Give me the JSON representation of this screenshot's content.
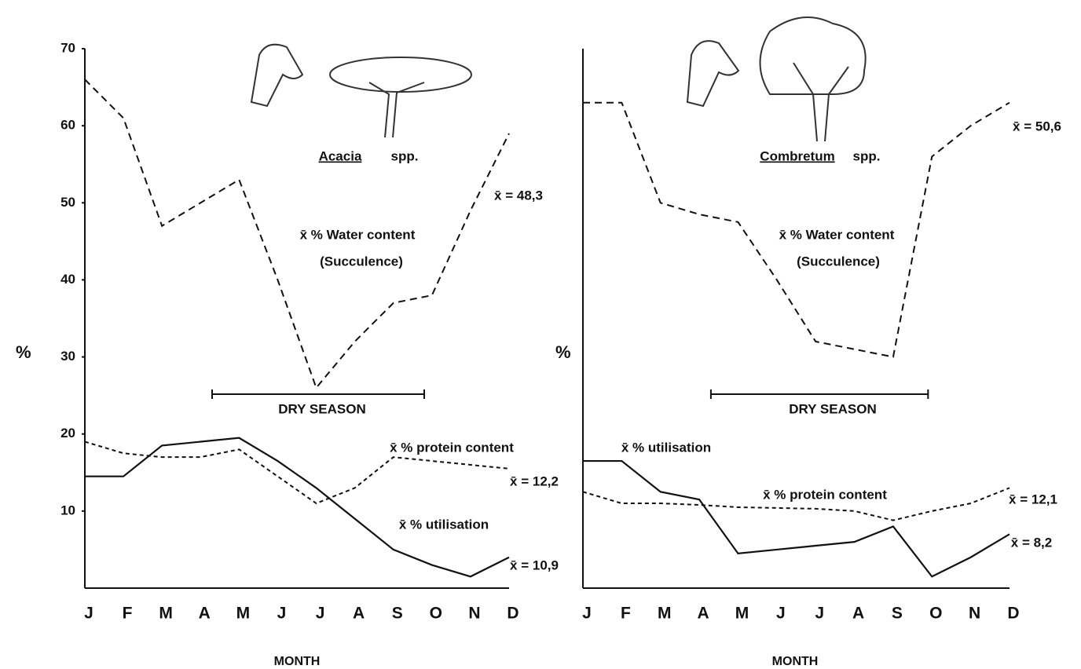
{
  "chart_data": [
    {
      "type": "line",
      "y_label": "%",
      "x_label": "MONTH",
      "categories": [
        "J",
        "F",
        "M",
        "A",
        "M",
        "J",
        "J",
        "A",
        "S",
        "O",
        "N",
        "D"
      ],
      "ylim": [
        0,
        70
      ],
      "yticks": [
        10,
        20,
        30,
        40,
        50,
        60,
        70
      ],
      "series": [
        {
          "name": "x̄ % Water content",
          "color": "#111111",
          "style": "dashed",
          "values": [
            66,
            61,
            47,
            50,
            53,
            40,
            26,
            32,
            37,
            38,
            49,
            59
          ]
        },
        {
          "name": "x̄ % protein content",
          "color": "#111111",
          "style": "dotted",
          "values": [
            19,
            17.5,
            17,
            17,
            18,
            14.5,
            11,
            13,
            17,
            16.5,
            16,
            15.5
          ]
        },
        {
          "name": "x̄ % utilisation",
          "color": "#111111",
          "style": "solid",
          "values": [
            14.5,
            14.5,
            18.5,
            19,
            19.5,
            16.5,
            13,
            9,
            5,
            3,
            1.5,
            4
          ]
        }
      ],
      "annotations": [
        "Acacia",
        "spp.",
        "(Succulence)",
        "x̄ = 48,3",
        "DRY SEASON",
        "x̄ = 12,2",
        "x̄ = 10,9"
      ]
    },
    {
      "type": "line",
      "y_label": "%",
      "x_label": "MONTH",
      "categories": [
        "J",
        "F",
        "M",
        "A",
        "M",
        "J",
        "J",
        "A",
        "S",
        "O",
        "N",
        "D"
      ],
      "ylim": [
        0,
        70
      ],
      "series": [
        {
          "name": "x̄ % Water content",
          "color": "#111111",
          "style": "dashed",
          "values": [
            63,
            63,
            50,
            48.5,
            47.5,
            40,
            32,
            31,
            30,
            56,
            60,
            63
          ]
        },
        {
          "name": "x̄ % protein content",
          "color": "#111111",
          "style": "dotted",
          "values": [
            12.5,
            11,
            11,
            10.8,
            10.5,
            10.4,
            10.3,
            10,
            8.8,
            10,
            11,
            13
          ]
        },
        {
          "name": "x̄ % utilisation",
          "color": "#111111",
          "style": "solid",
          "values": [
            16.5,
            16.5,
            12.5,
            11.5,
            4.5,
            5,
            5.5,
            6,
            8,
            1.5,
            4,
            7
          ]
        }
      ],
      "annotations": [
        "Combretum",
        "spp.",
        "(Succulence)",
        "x̄ = 50,6",
        "DRY SEASON",
        "x̄ = 12,1",
        "x̄ = 8,2"
      ]
    }
  ]
}
